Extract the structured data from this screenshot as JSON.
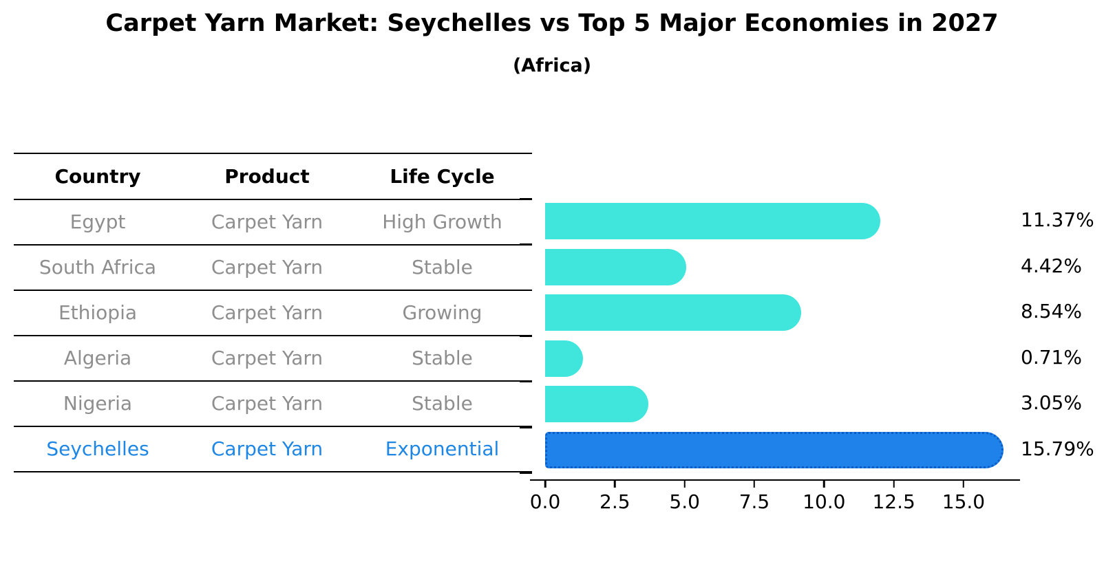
{
  "title": "Carpet Yarn Market: Seychelles vs Top 5 Major Economies in 2027",
  "subtitle": "(Africa)",
  "table": {
    "headers": [
      "Country",
      "Product",
      "Life Cycle"
    ],
    "rows": [
      {
        "country": "Egypt",
        "product": "Carpet Yarn",
        "life_cycle": "High Growth"
      },
      {
        "country": "South Africa",
        "product": "Carpet Yarn",
        "life_cycle": "Stable"
      },
      {
        "country": "Ethiopia",
        "product": "Carpet Yarn",
        "life_cycle": "Growing"
      },
      {
        "country": "Algeria",
        "product": "Carpet Yarn",
        "life_cycle": "Stable"
      },
      {
        "country": "Nigeria",
        "product": "Carpet Yarn",
        "life_cycle": "Stable"
      },
      {
        "country": "Seychelles",
        "product": "Carpet Yarn",
        "life_cycle": "Exponential"
      }
    ],
    "highlight_row": 5
  },
  "chart_data": {
    "type": "bar",
    "orientation": "horizontal",
    "title": "Carpet Yarn Market: Seychelles vs Top 5 Major Economies in 2027",
    "subtitle": "(Africa)",
    "categories": [
      "Egypt",
      "South Africa",
      "Ethiopia",
      "Algeria",
      "Nigeria",
      "Seychelles"
    ],
    "values": [
      11.37,
      4.42,
      8.54,
      0.71,
      3.05,
      15.79
    ],
    "value_labels": [
      "11.37%",
      "4.42%",
      "8.54%",
      "0.71%",
      "3.05%",
      "15.79%"
    ],
    "xlabel": "",
    "ylabel": "",
    "xlim": [
      -0.5,
      17.0
    ],
    "xticks": [
      "0.0",
      "2.5",
      "5.0",
      "7.5",
      "10.0",
      "12.5",
      "15.0"
    ],
    "xtick_values": [
      0,
      2.5,
      5,
      7.5,
      10,
      12.5,
      15
    ],
    "grid": false,
    "legend": "none",
    "bar_color": "#40E5DC",
    "highlight_bar_color": "#1E82EA",
    "highlight_edge_color": "#0C5CC4",
    "highlight_index": 5,
    "highlight_text_color": "#1E87E5",
    "table_text_color": "#8e8e8e",
    "axis_color": "#000000"
  }
}
